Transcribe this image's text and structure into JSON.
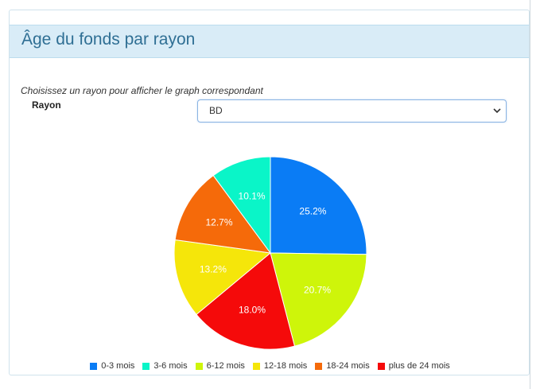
{
  "panel": {
    "title": "Âge du fonds par rayon"
  },
  "form": {
    "instructions": "Choisissez un rayon pour afficher le graph correspondant",
    "rayon_label": "Rayon",
    "rayon_selected": "BD"
  },
  "chart_data": {
    "type": "pie",
    "categories": [
      "0-3 mois",
      "3-6 mois",
      "6-12 mois",
      "12-18 mois",
      "18-24 mois",
      "plus de 24 mois"
    ],
    "values": [
      25.2,
      10.1,
      20.7,
      13.2,
      12.7,
      18.0
    ],
    "labels": [
      "25.2%",
      "10.1%",
      "20.7%",
      "13.2%",
      "12.7%",
      "18.0%"
    ],
    "colors": [
      "#0a7cf5",
      "#0af5c8",
      "#cef50a",
      "#f5e60a",
      "#f56a0a",
      "#f50a0a"
    ],
    "slice_order": [
      0,
      2,
      5,
      3,
      4,
      1
    ],
    "legend_position": "bottom"
  }
}
